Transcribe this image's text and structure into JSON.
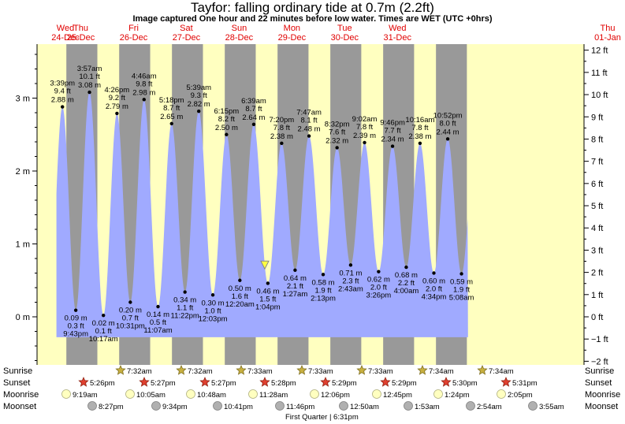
{
  "title": "Tayfor: falling  ordinary tide at 0.7m (2.2ft)",
  "subtitle": "Image captured One hour and 22 minutes before low water. Times are WET (UTC +0hrs)",
  "colors": {
    "water": "#a0aaff",
    "day": "#ffffc0",
    "night": "#999999",
    "day_label": "#e00000"
  },
  "chart_data": {
    "type": "area",
    "days": [
      {
        "name": "Wed",
        "date": "24-Dec"
      },
      {
        "name": "Thu",
        "date": "25-Dec"
      },
      {
        "name": "Fri",
        "date": "26-Dec"
      },
      {
        "name": "Sat",
        "date": "27-Dec"
      },
      {
        "name": "Sun",
        "date": "28-Dec"
      },
      {
        "name": "Mon",
        "date": "29-Dec"
      },
      {
        "name": "Tue",
        "date": "30-Dec"
      },
      {
        "name": "Wed",
        "date": "31-Dec"
      },
      {
        "name": "Thu",
        "date": "01-Jan"
      }
    ],
    "left_axis": {
      "unit": "m",
      "ticks": [
        "0 m",
        "1 m",
        "2 m",
        "3 m"
      ],
      "range_m": [
        -0.6,
        3.75
      ]
    },
    "right_axis": {
      "unit": "ft",
      "ticks": [
        "−2 ft",
        "−1 ft",
        "0 ft",
        "1 ft",
        "2 ft",
        "3 ft",
        "4 ft",
        "5 ft",
        "6 ft",
        "7 ft",
        "8 ft",
        "9 ft",
        "10 ft",
        "11 ft",
        "12 ft"
      ]
    },
    "current": {
      "level_m": 0.7,
      "time": "28-Dec ~11:40am"
    },
    "tides": [
      {
        "type": "high",
        "day": 0,
        "time": "3:39 pm",
        "ft": "9.4 ft",
        "m": "2.88 m",
        "t": 15.65,
        "v": 2.88
      },
      {
        "type": "low",
        "day": 0,
        "time": "9:43 pm",
        "ft": "0.3 ft",
        "m": "0.09 m",
        "t": 21.717,
        "v": 0.09
      },
      {
        "type": "high",
        "day": 1,
        "time": "3:57 am",
        "ft": "10.1 ft",
        "m": "3.08 m",
        "t": 27.95,
        "v": 3.08
      },
      {
        "type": "low",
        "day": 1,
        "time": "10:17 am",
        "ft": "0.1 ft",
        "m": "0.02 m",
        "t": 34.283,
        "v": 0.02
      },
      {
        "type": "high",
        "day": 1,
        "time": "4:26 pm",
        "ft": "9.2 ft",
        "m": "2.79 m",
        "t": 40.433,
        "v": 2.79
      },
      {
        "type": "low",
        "day": 1,
        "time": "10:31 pm",
        "ft": "0.7 ft",
        "m": "0.20 m",
        "t": 46.517,
        "v": 0.2
      },
      {
        "type": "high",
        "day": 2,
        "time": "4:46 am",
        "ft": "9.8 ft",
        "m": "2.98 m",
        "t": 52.767,
        "v": 2.98
      },
      {
        "type": "low",
        "day": 2,
        "time": "11:07 am",
        "ft": "0.5 ft",
        "m": "0.14 m",
        "t": 59.117,
        "v": 0.14
      },
      {
        "type": "high",
        "day": 2,
        "time": "5:18 pm",
        "ft": "8.7 ft",
        "m": "2.65 m",
        "t": 65.3,
        "v": 2.65
      },
      {
        "type": "low",
        "day": 2,
        "time": "11:22 pm",
        "ft": "1.1 ft",
        "m": "0.34 m",
        "t": 71.367,
        "v": 0.34
      },
      {
        "type": "high",
        "day": 3,
        "time": "5:39 am",
        "ft": "9.3 ft",
        "m": "2.82 m",
        "t": 77.65,
        "v": 2.82
      },
      {
        "type": "low",
        "day": 3,
        "time": "12:03 pm",
        "ft": "1.0 ft",
        "m": "0.30 m",
        "t": 84.05,
        "v": 0.3
      },
      {
        "type": "high",
        "day": 3,
        "time": "6:15 pm",
        "ft": "8.2 ft",
        "m": "2.50 m",
        "t": 90.25,
        "v": 2.5
      },
      {
        "type": "low",
        "day": 4,
        "time": "12:20 am",
        "ft": "1.6 ft",
        "m": "0.50 m",
        "t": 96.333,
        "v": 0.5
      },
      {
        "type": "high",
        "day": 4,
        "time": "6:39 am",
        "ft": "8.7 ft",
        "m": "2.64 m",
        "t": 102.65,
        "v": 2.64
      },
      {
        "type": "low",
        "day": 4,
        "time": "1:04 pm",
        "ft": "1.5 ft",
        "m": "0.46 m",
        "t": 109.067,
        "v": 0.46
      },
      {
        "type": "high",
        "day": 4,
        "time": "7:20 pm",
        "ft": "7.8 ft",
        "m": "2.38 m",
        "t": 115.333,
        "v": 2.38
      },
      {
        "type": "low",
        "day": 5,
        "time": "1:27 am",
        "ft": "2.1 ft",
        "m": "0.64 m",
        "t": 121.45,
        "v": 0.64
      },
      {
        "type": "high",
        "day": 5,
        "time": "7:47 am",
        "ft": "8.1 ft",
        "m": "2.48 m",
        "t": 127.783,
        "v": 2.48
      },
      {
        "type": "low",
        "day": 5,
        "time": "2:13 pm",
        "ft": "1.9 ft",
        "m": "0.58 m",
        "t": 134.217,
        "v": 0.58
      },
      {
        "type": "high",
        "day": 5,
        "time": "8:32 pm",
        "ft": "7.6 ft",
        "m": "2.32 m",
        "t": 140.533,
        "v": 2.32
      },
      {
        "type": "low",
        "day": 6,
        "time": "2:43 am",
        "ft": "2.3 ft",
        "m": "0.71 m",
        "t": 146.717,
        "v": 0.71
      },
      {
        "type": "high",
        "day": 6,
        "time": "9:02 am",
        "ft": "7.8 ft",
        "m": "2.39 m",
        "t": 153.033,
        "v": 2.39
      },
      {
        "type": "low",
        "day": 6,
        "time": "3:26 pm",
        "ft": "2.0 ft",
        "m": "0.62 m",
        "t": 159.433,
        "v": 0.62
      },
      {
        "type": "high",
        "day": 6,
        "time": "9:46 pm",
        "ft": "7.7 ft",
        "m": "2.34 m",
        "t": 165.767,
        "v": 2.34
      },
      {
        "type": "low",
        "day": 7,
        "time": "4:00 am",
        "ft": "2.2 ft",
        "m": "0.68 m",
        "t": 172.0,
        "v": 0.68
      },
      {
        "type": "high",
        "day": 7,
        "time": "10:16 am",
        "ft": "7.8 ft",
        "m": "2.38 m",
        "t": 178.267,
        "v": 2.38
      },
      {
        "type": "low",
        "day": 7,
        "time": "4:34 pm",
        "ft": "2.0 ft",
        "m": "0.60 m",
        "t": 184.567,
        "v": 0.6
      },
      {
        "type": "high",
        "day": 7,
        "time": "10:52 pm",
        "ft": "8.0 ft",
        "m": "2.44 m",
        "t": 190.867,
        "v": 2.44
      },
      {
        "type": "low",
        "day": 8,
        "time": "5:08 am",
        "ft": "1.9 ft",
        "m": "0.59 m",
        "t": 197.133,
        "v": 0.59
      }
    ]
  },
  "rows": {
    "labels": [
      "Sunrise",
      "Sunset",
      "Moonrise",
      "Moonset"
    ],
    "sunrise": [
      "7:32am",
      "7:32am",
      "7:33am",
      "7:33am",
      "7:33am",
      "7:34am",
      "7:34am"
    ],
    "sunset": [
      "5:26pm",
      "5:27pm",
      "5:27pm",
      "5:28pm",
      "5:29pm",
      "5:29pm",
      "5:30pm",
      "5:31pm"
    ],
    "moonrise": [
      "9:19am",
      "10:05am",
      "10:48am",
      "11:28am",
      "12:06pm",
      "12:45pm",
      "1:24pm",
      "2:05pm"
    ],
    "moonset": [
      "8:27pm",
      "9:34pm",
      "10:41pm",
      "11:46pm",
      "12:50am",
      "1:53am",
      "2:54am",
      "3:55am"
    ],
    "phase": "First Quarter | 6:31pm"
  }
}
